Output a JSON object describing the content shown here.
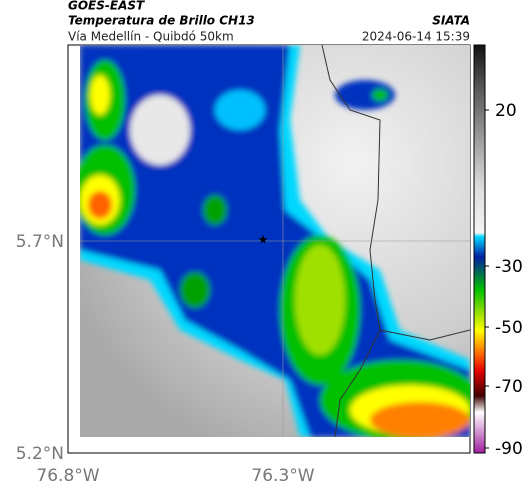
{
  "header": {
    "satellite": "GOES-EAST",
    "title": "Temperatura de Brillo CH13",
    "source": "SIATA",
    "subtitle": "Vía Medellín - Quibdó 50km",
    "timestamp": "2024-06-14 15:39"
  },
  "axes": {
    "latitude_labels": [
      "5.7°N",
      "5.2°N"
    ],
    "longitude_labels": [
      "76.8°W",
      "76.3°W"
    ]
  },
  "colorbar": {
    "tick_labels": [
      "20",
      "-30",
      "-50",
      "-70",
      "-90"
    ]
  }
}
